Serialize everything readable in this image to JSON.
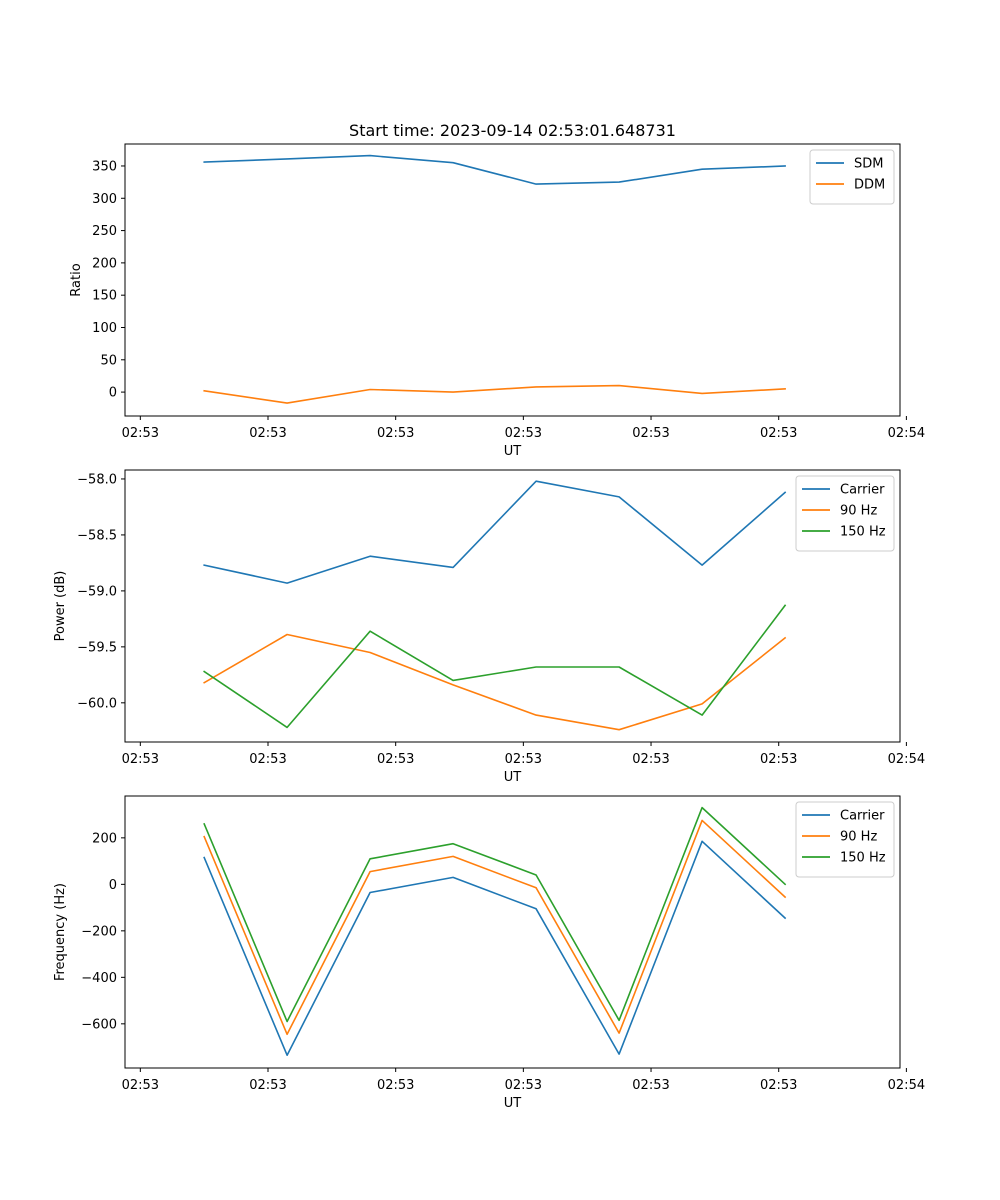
{
  "chart_data": [
    {
      "type": "line",
      "title": "Start time: 2023-09-14 02:53:01.648731",
      "xlabel": "UT",
      "ylabel": "Ratio",
      "xtick_labels": [
        "02:53",
        "02:53",
        "02:53",
        "02:53",
        "02:53",
        "02:53",
        "02:54"
      ],
      "xlim": [
        -0.12,
        5.95
      ],
      "ylim": [
        -37,
        384
      ],
      "yticks": [
        0,
        50,
        100,
        150,
        200,
        250,
        300,
        350
      ],
      "ytick_labels": [
        "0",
        "50",
        "100",
        "150",
        "200",
        "250",
        "300",
        "350"
      ],
      "x": [
        0.5,
        1.15,
        1.8,
        2.45,
        3.1,
        3.75,
        4.4,
        5.05
      ],
      "legend_position": "upper right",
      "series": [
        {
          "name": "SDM",
          "color": "#1f77b4",
          "values": [
            356,
            361,
            366,
            355,
            322,
            325,
            345,
            350
          ]
        },
        {
          "name": "DDM",
          "color": "#ff7f0e",
          "values": [
            2,
            -17,
            4,
            0,
            8,
            10,
            -2,
            5
          ]
        }
      ]
    },
    {
      "type": "line",
      "title": "",
      "xlabel": "UT",
      "ylabel": "Power (dB)",
      "xtick_labels": [
        "02:53",
        "02:53",
        "02:53",
        "02:53",
        "02:53",
        "02:53",
        "02:54"
      ],
      "xlim": [
        -0.12,
        5.95
      ],
      "ylim": [
        -60.35,
        -57.92
      ],
      "yticks": [
        -60.0,
        -59.5,
        -59.0,
        -58.5,
        -58.0
      ],
      "ytick_labels": [
        "−60.0",
        "−59.5",
        "−59.0",
        "−58.5",
        "−58.0"
      ],
      "x": [
        0.5,
        1.15,
        1.8,
        2.45,
        3.1,
        3.75,
        4.4,
        5.05
      ],
      "legend_position": "upper right",
      "series": [
        {
          "name": "Carrier",
          "color": "#1f77b4",
          "values": [
            -58.77,
            -58.93,
            -58.69,
            -58.79,
            -58.02,
            -58.16,
            -58.77,
            -58.12
          ]
        },
        {
          "name": "90 Hz",
          "color": "#ff7f0e",
          "values": [
            -59.82,
            -59.39,
            -59.55,
            -59.84,
            -60.11,
            -60.24,
            -60.01,
            -59.42
          ]
        },
        {
          "name": "150 Hz",
          "color": "#2ca02c",
          "values": [
            -59.72,
            -60.22,
            -59.36,
            -59.8,
            -59.68,
            -59.68,
            -60.11,
            -59.13
          ]
        }
      ]
    },
    {
      "type": "line",
      "title": "",
      "xlabel": "UT",
      "ylabel": "Frequency (Hz)",
      "xtick_labels": [
        "02:53",
        "02:53",
        "02:53",
        "02:53",
        "02:53",
        "02:53",
        "02:54"
      ],
      "xlim": [
        -0.12,
        5.95
      ],
      "ylim": [
        -790,
        380
      ],
      "yticks": [
        -600,
        -400,
        -200,
        0,
        200
      ],
      "ytick_labels": [
        "−600",
        "−400",
        "−200",
        "0",
        "200"
      ],
      "x": [
        0.5,
        1.15,
        1.8,
        2.45,
        3.1,
        3.75,
        4.4,
        5.05
      ],
      "legend_position": "upper right",
      "series": [
        {
          "name": "Carrier",
          "color": "#1f77b4",
          "values": [
            115,
            -735,
            -35,
            30,
            -105,
            -730,
            185,
            -145
          ]
        },
        {
          "name": "90 Hz",
          "color": "#ff7f0e",
          "values": [
            205,
            -645,
            55,
            120,
            -15,
            -640,
            275,
            -55
          ]
        },
        {
          "name": "150 Hz",
          "color": "#2ca02c",
          "values": [
            260,
            -590,
            110,
            175,
            40,
            -585,
            330,
            0
          ]
        }
      ]
    }
  ]
}
